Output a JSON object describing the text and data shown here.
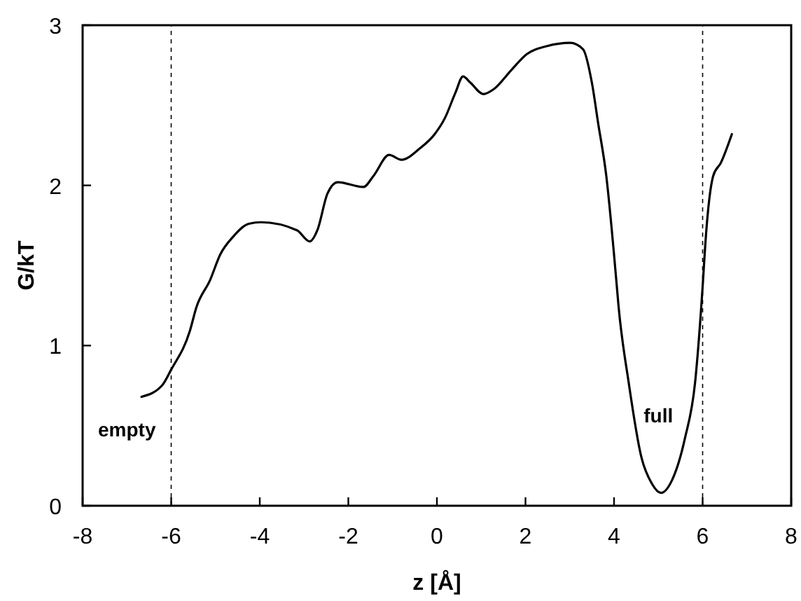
{
  "chart_data": {
    "type": "line",
    "xlabel": "z [Å]",
    "ylabel": "G/kT",
    "xlim": [
      -8,
      8
    ],
    "xticks": [
      -8,
      -6,
      -4,
      -2,
      0,
      2,
      4,
      6,
      8
    ],
    "ylim": [
      0,
      3
    ],
    "yticks": [
      0,
      1,
      2,
      3
    ],
    "grid": false,
    "marker": "none",
    "line_style": "solid",
    "series": [
      {
        "color": "#000000",
        "x": [
          -6.67,
          -6.21,
          -6.0,
          -5.58,
          -5.43,
          -5.12,
          -4.89,
          -4.6,
          -4.25,
          -3.97,
          -3.16,
          -2.87,
          -2.7,
          -2.47,
          -2.24,
          -1.66,
          -1.43,
          -1.08,
          -0.8,
          -0.39,
          -0.05,
          0.18,
          0.42,
          0.59,
          0.76,
          1.05,
          1.28,
          1.68,
          2.03,
          2.49,
          3.01,
          3.3,
          3.5,
          3.64,
          3.82,
          4.05,
          4.1,
          4.33,
          4.62,
          4.85,
          5.06,
          5.31,
          5.6,
          5.83,
          6.01,
          6.06,
          6.24,
          6.41,
          6.66
        ],
        "values": [
          0.68,
          0.75,
          0.85,
          1.09,
          1.24,
          1.41,
          1.57,
          1.68,
          1.76,
          1.77,
          1.72,
          1.65,
          1.72,
          1.95,
          2.02,
          1.99,
          2.06,
          2.19,
          2.16,
          2.23,
          2.32,
          2.42,
          2.58,
          2.68,
          2.64,
          2.57,
          2.6,
          2.72,
          2.82,
          2.87,
          2.89,
          2.85,
          2.64,
          2.39,
          2.07,
          1.41,
          1.25,
          0.77,
          0.3,
          0.14,
          0.08,
          0.16,
          0.42,
          0.77,
          1.41,
          1.63,
          2.06,
          2.14,
          2.32
        ]
      }
    ],
    "ref_lines": [
      {
        "axis": "x",
        "value": -6,
        "color": "#000000",
        "line_style": "dashed"
      },
      {
        "axis": "x",
        "value": 6,
        "color": "#000000",
        "line_style": "dashed"
      }
    ],
    "annotations": [
      "empty",
      "full"
    ]
  }
}
